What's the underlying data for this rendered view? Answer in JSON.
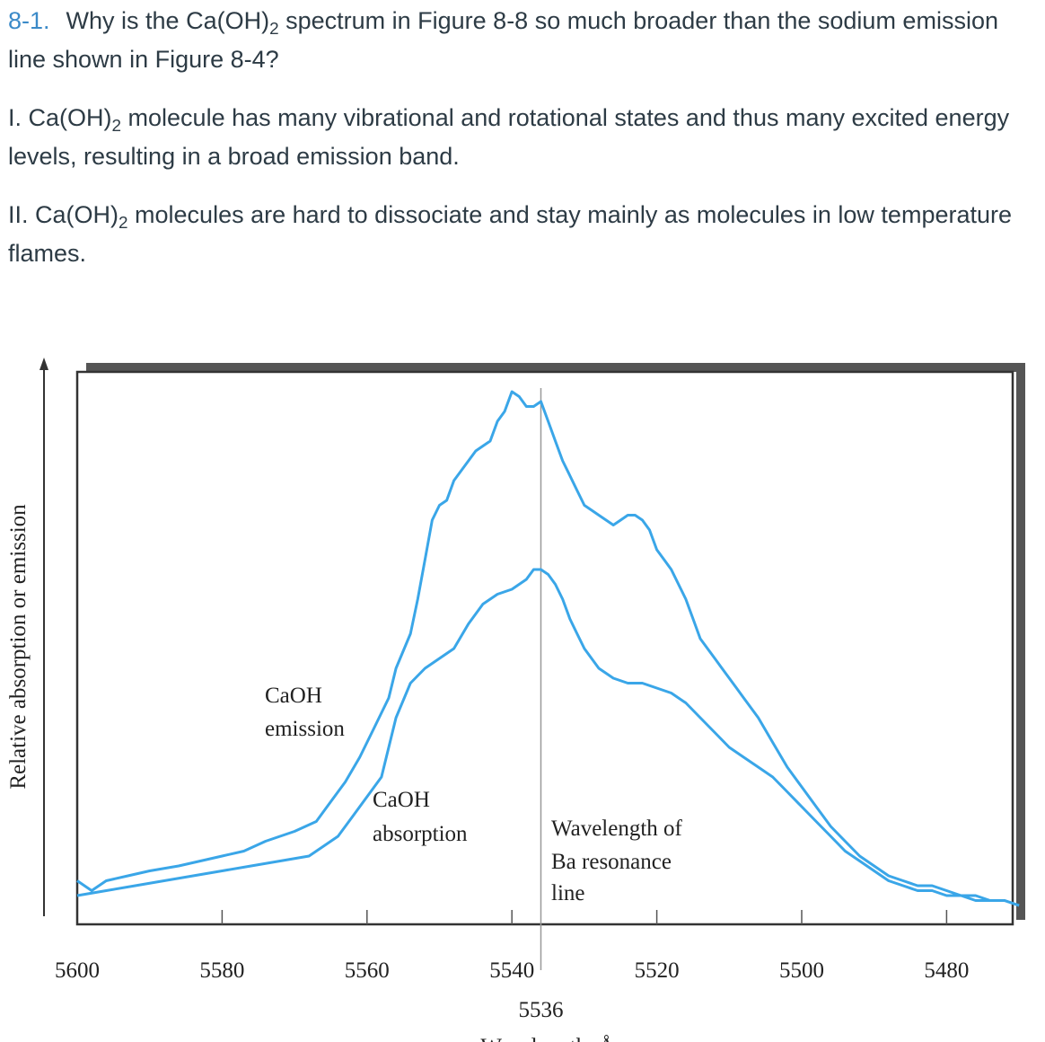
{
  "question": {
    "number": "8-1.",
    "line1_prefix": "Why is the Ca(OH)",
    "line1_sub": "2",
    "line1_suffix": " spectrum in Figure 8-8 so much broader than the sodium emission",
    "line2": "line shown in  Figure 8-4?"
  },
  "statement_1": {
    "line1_prefix": "I. Ca(OH)",
    "line1_sub": "2",
    "line1_suffix": " molecule has many vibrational and rotational states and thus many excited energy",
    "line2": "levels, resulting in a broad emission band."
  },
  "statement_2": {
    "line1_prefix": "II. Ca(OH)",
    "line1_sub": "2",
    "line1_suffix": " molecules are hard to dissociate and stay mainly as molecules in low temperature",
    "line2": "flames."
  },
  "chart_data": {
    "type": "line",
    "ylabel": "Relative absorption or emission",
    "xlabel": "Wavelength, Å",
    "xlim": [
      5600,
      5470
    ],
    "x_ticks": [
      5600,
      5580,
      5560,
      5540,
      5520,
      5500,
      5480
    ],
    "marker": {
      "x": 5536,
      "label": "5536"
    },
    "annotations": {
      "emission_line1": "CaOH",
      "emission_line2": "emission",
      "absorption_line1": "CaOH",
      "absorption_line2": "absorption",
      "ba_line1": "Wavelength of",
      "ba_line2": "Ba resonance",
      "ba_line3": "line"
    },
    "line_color": "#3aa6e8",
    "series": [
      {
        "x": [
          5600,
          5598,
          5596,
          5593,
          5590,
          5586,
          5583,
          5580,
          5577,
          5574,
          5570,
          5567,
          5565,
          5563,
          5561,
          5559,
          5557,
          5556,
          5554,
          5553,
          5552,
          5551,
          5550,
          5549,
          5548,
          5547,
          5546,
          5545,
          5544,
          5543,
          5542,
          5541,
          5540,
          5539,
          5538,
          5537,
          5536,
          5535,
          5534,
          5533,
          5532,
          5531,
          5530,
          5529,
          5528,
          5527,
          5526,
          5525,
          5524,
          5523,
          5522,
          5521,
          5520,
          5519,
          5518,
          5517,
          5516,
          5515,
          5514,
          5513,
          5512,
          5511,
          5510,
          5509,
          5508,
          5506,
          5504,
          5502,
          5500,
          5498,
          5496,
          5494,
          5492,
          5490,
          5488,
          5486,
          5484,
          5482,
          5480,
          5478,
          5476,
          5474,
          5472,
          5470
        ],
        "y": [
          5,
          3,
          5,
          6,
          7,
          8,
          9,
          10,
          11,
          13,
          15,
          17,
          21,
          25,
          30,
          36,
          42,
          48,
          55,
          62,
          70,
          78,
          81,
          82,
          86,
          88,
          90,
          92,
          93,
          94,
          98,
          100,
          104,
          103,
          101,
          101,
          102,
          98,
          94,
          90,
          87,
          84,
          81,
          80,
          79,
          78,
          77,
          78,
          79,
          79,
          78,
          76,
          72,
          70,
          68,
          65,
          62,
          58,
          54,
          52,
          50,
          48,
          46,
          44,
          42,
          38,
          33,
          28,
          24,
          20,
          16,
          13,
          10,
          8,
          6,
          5,
          4,
          4,
          3,
          2,
          2,
          1,
          1,
          0
        ]
      },
      {
        "x": [
          5600,
          5596,
          5592,
          5588,
          5584,
          5580,
          5576,
          5572,
          5568,
          5566,
          5564,
          5562,
          5560,
          5558,
          5557,
          5556,
          5554,
          5552,
          5550,
          5548,
          5546,
          5544,
          5542,
          5540,
          5538,
          5537,
          5536,
          5535,
          5534,
          5533,
          5532,
          5531,
          5530,
          5528,
          5526,
          5524,
          5522,
          5520,
          5518,
          5516,
          5514,
          5512,
          5510,
          5508,
          5506,
          5504,
          5502,
          5500,
          5498,
          5496,
          5494,
          5492,
          5490,
          5488,
          5486,
          5484,
          5482,
          5480,
          5478,
          5476,
          5474,
          5472,
          5470
        ],
        "y": [
          2,
          3,
          4,
          5,
          6,
          7,
          8,
          9,
          10,
          12,
          14,
          18,
          22,
          26,
          32,
          38,
          45,
          48,
          50,
          52,
          57,
          61,
          63,
          64,
          66,
          68,
          68,
          67,
          65,
          62,
          58,
          55,
          52,
          48,
          46,
          45,
          45,
          44,
          43,
          41,
          38,
          35,
          32,
          30,
          28,
          26,
          23,
          20,
          17,
          14,
          11,
          9,
          7,
          5,
          4,
          3,
          3,
          2,
          2,
          1,
          1,
          1,
          0
        ]
      }
    ]
  }
}
